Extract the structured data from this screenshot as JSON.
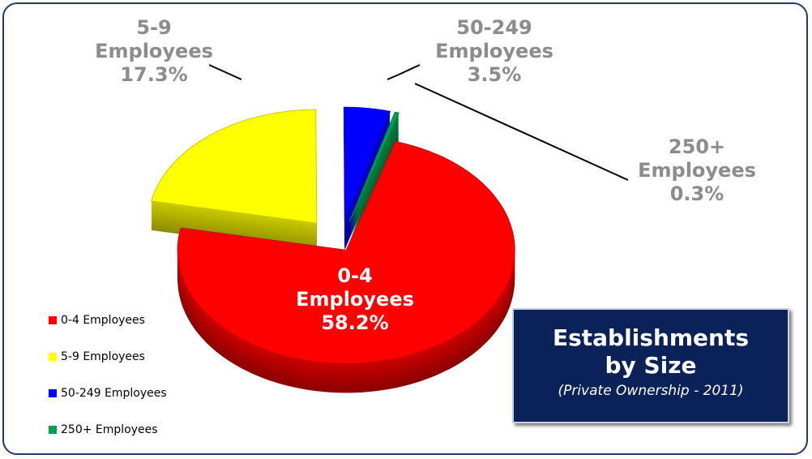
{
  "chart_data": {
    "type": "pie3d",
    "categories": [
      "0-4 Employees",
      "5-9 Employees",
      "50-249 Employees",
      "250+ Employees"
    ],
    "values": [
      58.2,
      17.3,
      3.5,
      0.3
    ],
    "value_labels": [
      "58.2%",
      "17.3%",
      "3.5%",
      "0.3%"
    ],
    "colors": [
      "#ff0000",
      "#ffff00",
      "#0000ff",
      "#00a050"
    ],
    "legend": "bottom-left",
    "title": "Establishments by Size",
    "subtitle": "(Private Ownership - 2011)"
  }
}
